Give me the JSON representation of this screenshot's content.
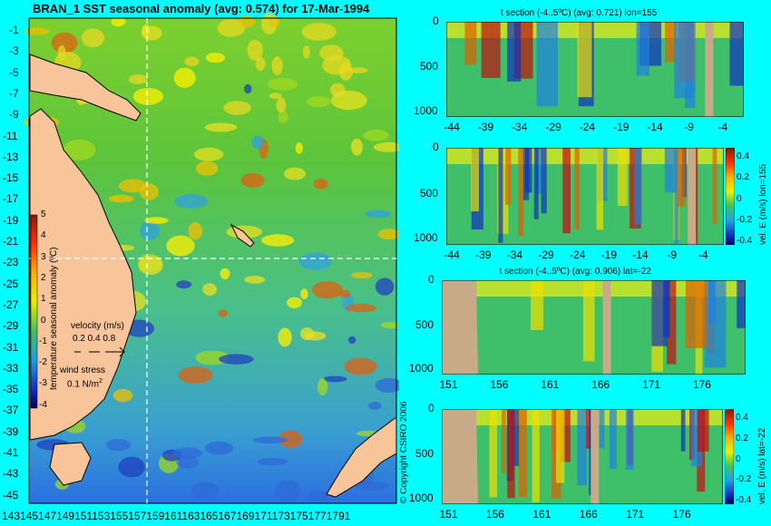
{
  "main_title": "BRAN_1 SST seasonal anomaly (avg: 0.574) for 17-Mar-1994",
  "map": {
    "lat_ticks": [
      "-1",
      "-3",
      "-5",
      "-7",
      "-9",
      "-11",
      "-13",
      "-15",
      "-17",
      "-19",
      "-21",
      "-23",
      "-25",
      "-27",
      "-29",
      "-31",
      "-33",
      "-35",
      "-37",
      "-39",
      "-41",
      "-43",
      "-45"
    ],
    "lon_ticks_text": "1431451471491511531551571591611631651671691711731751771791"
  },
  "colorbar_main": {
    "ticks": [
      "5",
      "4",
      "3",
      "2",
      "1",
      "0",
      "-1",
      "-2",
      "-3",
      "-4"
    ],
    "label": "temperature seasonal anomaly (ºC)"
  },
  "velocity_legend": {
    "title": "velocity (m/s)",
    "values": "0.2 0.4 0.8"
  },
  "wind_legend": {
    "title": "wind stress",
    "value": "0.1 N/m",
    "exponent": "2"
  },
  "copyright": "© Copyright CSIRO 2006",
  "panels": [
    {
      "title": "t section (-4..5ºC) (avg: 0.721) lon=155",
      "y_ticks": [
        "0",
        "500",
        "1000"
      ],
      "x_ticks": [
        "-44",
        "-39",
        "-34",
        "-29",
        "-24",
        "-19",
        "-14",
        "-9",
        "-4"
      ]
    },
    {
      "title": "",
      "y_ticks": [
        "0",
        "500",
        "1000"
      ],
      "x_ticks": [
        "-44",
        "-39",
        "-34",
        "-29",
        "-24",
        "-19",
        "-14",
        "-9",
        "-4"
      ],
      "cb_ticks": [
        "0.4",
        "0.2",
        "0",
        "-0.2",
        "-0.4"
      ],
      "cb_label": "vel. E (m/s) lon=155"
    },
    {
      "title": "t section (-4..5ºC) (avg: 0.906) lat=-22",
      "y_ticks": [
        "0",
        "500",
        "1000"
      ],
      "x_ticks": [
        "151",
        "156",
        "161",
        "166",
        "171",
        "176"
      ]
    },
    {
      "title": "",
      "y_ticks": [
        "0",
        "500",
        "1000"
      ],
      "x_ticks": [
        "151",
        "156",
        "161",
        "166",
        "171",
        "176"
      ],
      "cb_ticks": [
        "0.4",
        "0.2",
        "0",
        "-0.2",
        "-0.4"
      ],
      "cb_label": "vel. E (m/s) lat=-22"
    }
  ],
  "chart_data": [
    {
      "type": "heatmap",
      "title": "BRAN_1 SST seasonal anomaly (avg: 0.574) for 17-Mar-1994",
      "x_range": [
        143,
        180
      ],
      "y_range": [
        -45,
        0
      ],
      "color_range": [
        -4,
        5
      ],
      "crosshair": {
        "lon": 155,
        "lat": -22
      }
    },
    {
      "type": "heatmap",
      "title": "t section (-4..5ºC) (avg: 0.721) lon=155",
      "x_range": [
        -45,
        -1
      ],
      "y_range": [
        0,
        1050
      ]
    },
    {
      "type": "heatmap",
      "title": "vel. E (m/s) lon=155",
      "x_range": [
        -45,
        -1
      ],
      "y_range": [
        0,
        1050
      ],
      "color_range": [
        -0.4,
        0.4
      ]
    },
    {
      "type": "heatmap",
      "title": "t section (-4..5ºC) (avg: 0.906) lat=-22",
      "x_range": [
        150,
        180
      ],
      "y_range": [
        0,
        1050
      ]
    },
    {
      "type": "heatmap",
      "title": "vel. E (m/s) lat=-22",
      "x_range": [
        150,
        180
      ],
      "y_range": [
        0,
        1050
      ],
      "color_range": [
        -0.4,
        0.4
      ]
    }
  ]
}
